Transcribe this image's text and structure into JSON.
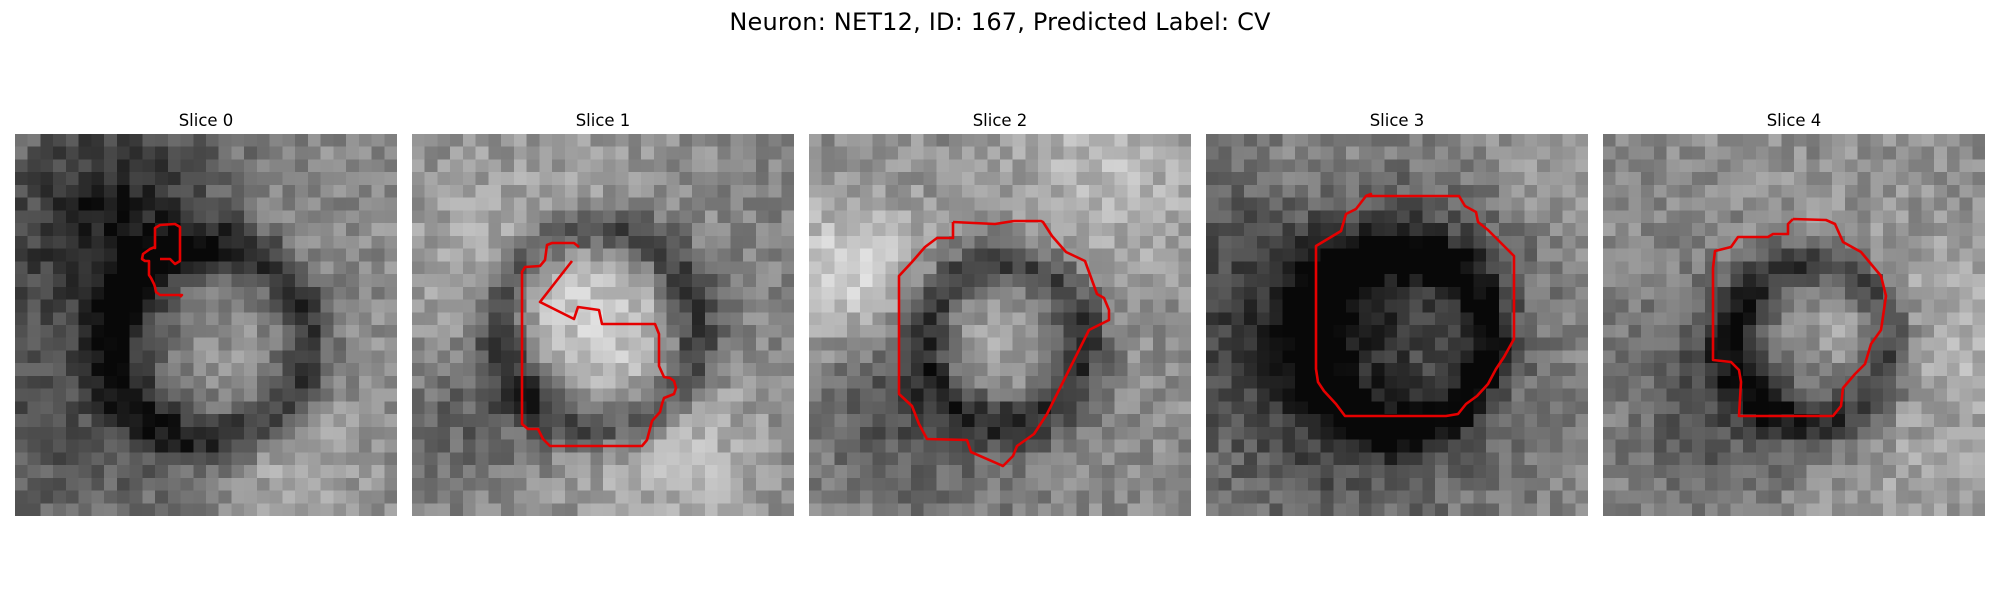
{
  "figure": {
    "suptitle": "Neuron: NET12, ID: 167, Predicted Label: CV"
  },
  "overlay_color": "#e50000",
  "panels": [
    {
      "title": "Slice 0",
      "content": "grayscale-microscopy-patch",
      "contour": "red-segmentation-outline"
    },
    {
      "title": "Slice 1",
      "content": "grayscale-microscopy-patch",
      "contour": "red-segmentation-outline"
    },
    {
      "title": "Slice 2",
      "content": "grayscale-microscopy-patch",
      "contour": "red-segmentation-outline"
    },
    {
      "title": "Slice 3",
      "content": "grayscale-microscopy-patch",
      "contour": "red-segmentation-outline"
    },
    {
      "title": "Slice 4",
      "content": "grayscale-microscopy-patch",
      "contour": "red-segmentation-outline"
    }
  ]
}
